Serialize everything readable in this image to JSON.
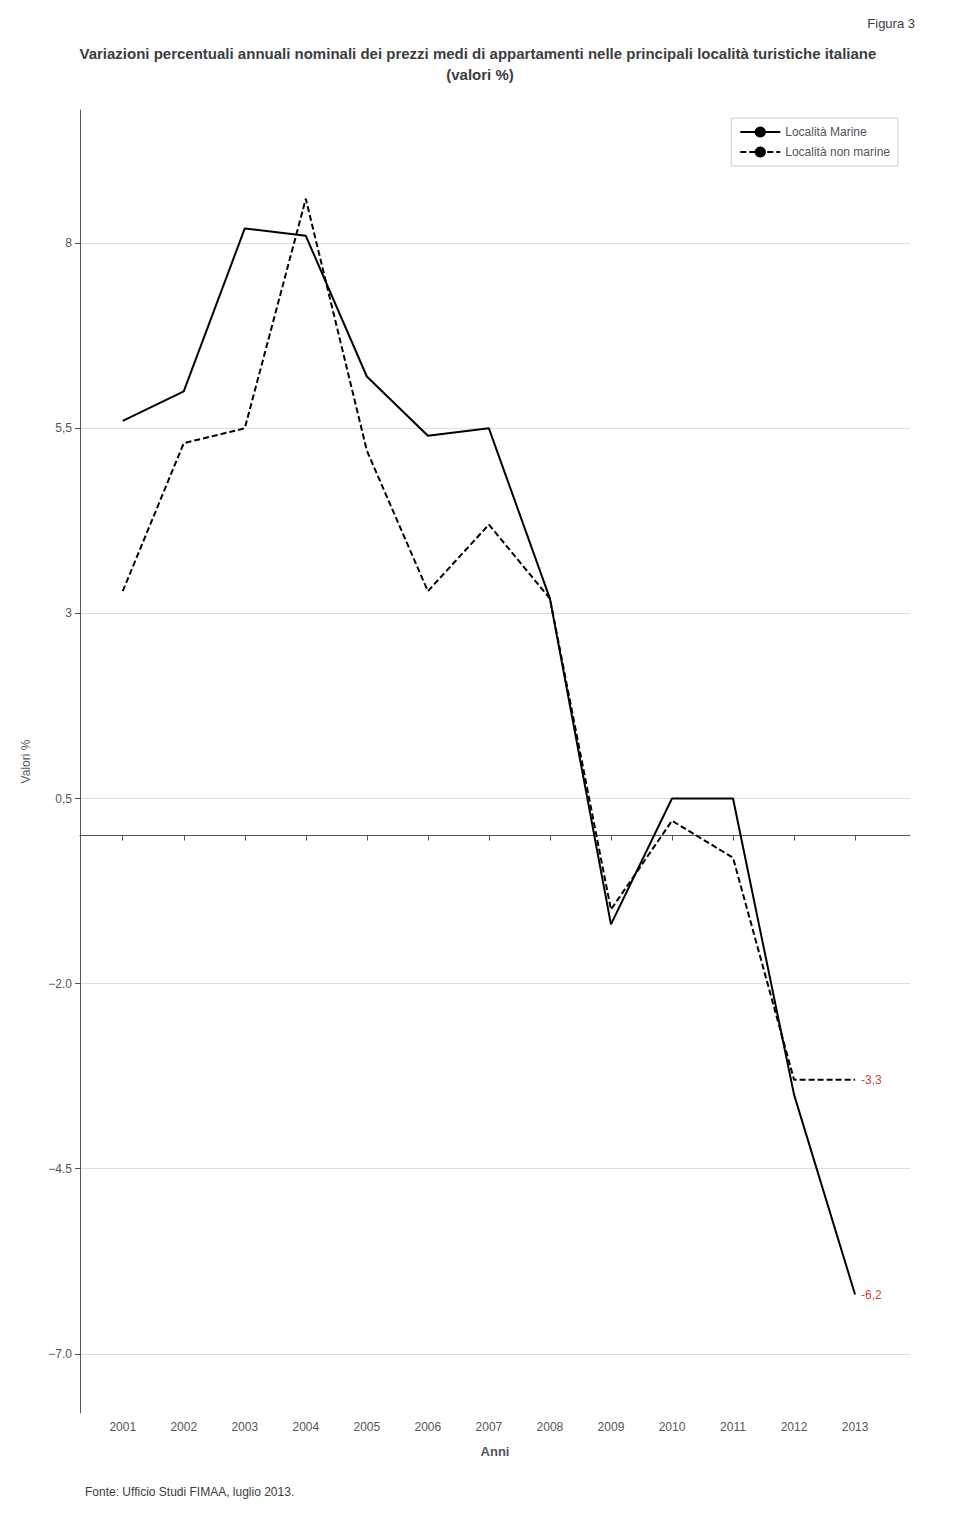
{
  "chart_data": {
    "type": "line",
    "title": "Variazioni percentuali annuali nominali dei prezzi medi di appartamenti nelle principali località turistiche italiane (valori %)",
    "figure_label": "Figura 3",
    "source": "Fonte: Ufficio Studi FIMAA, luglio 2013.",
    "xlabel": "Anni",
    "ylabel": "Valori %",
    "x": [
      2001,
      2002,
      2003,
      2004,
      2005,
      2006,
      2007,
      2008,
      2009,
      2010,
      2011,
      2012,
      2013
    ],
    "xlim": [
      2000.3,
      2013.9
    ],
    "xticks": [
      2001,
      2002,
      2003,
      2004,
      2005,
      2006,
      2007,
      2008,
      2009,
      2010,
      2011,
      2012,
      2013
    ],
    "ylim": [
      -7.8,
      9.8
    ],
    "yticks": [
      8,
      {
        "value": 5.5,
        "label": "5,5"
      },
      3,
      {
        "value": 0.5,
        "label": "0,5"
      },
      {
        "value": -2.0,
        "label": "−2.0"
      },
      {
        "value": -4.5,
        "label": "−4.5"
      },
      {
        "value": -7.0,
        "label": "−7.0"
      }
    ],
    "grid": true,
    "legend": "upper right",
    "series": [
      {
        "name": "Località Marine",
        "color": "#000000",
        "line_style": "solid",
        "values": [
          5.6,
          6.0,
          8.2,
          8.1,
          6.2,
          5.4,
          5.5,
          3.2,
          -1.2,
          0.5,
          0.5,
          -3.5,
          -6.2
        ]
      },
      {
        "name": "Località non marine",
        "color": "#000000",
        "line_style": "dashed",
        "values": [
          3.3,
          5.3,
          5.5,
          8.6,
          5.2,
          3.3,
          4.2,
          3.2,
          -1.0,
          0.2,
          -0.3,
          -3.3,
          -3.3
        ]
      }
    ],
    "annotations": [
      {
        "text": "-6,2",
        "x": 2013,
        "y": -6.2,
        "color": "#cc0000"
      },
      {
        "text": "-3,3",
        "x": 2013,
        "y": -3.3,
        "color": "#cc0000"
      }
    ]
  }
}
